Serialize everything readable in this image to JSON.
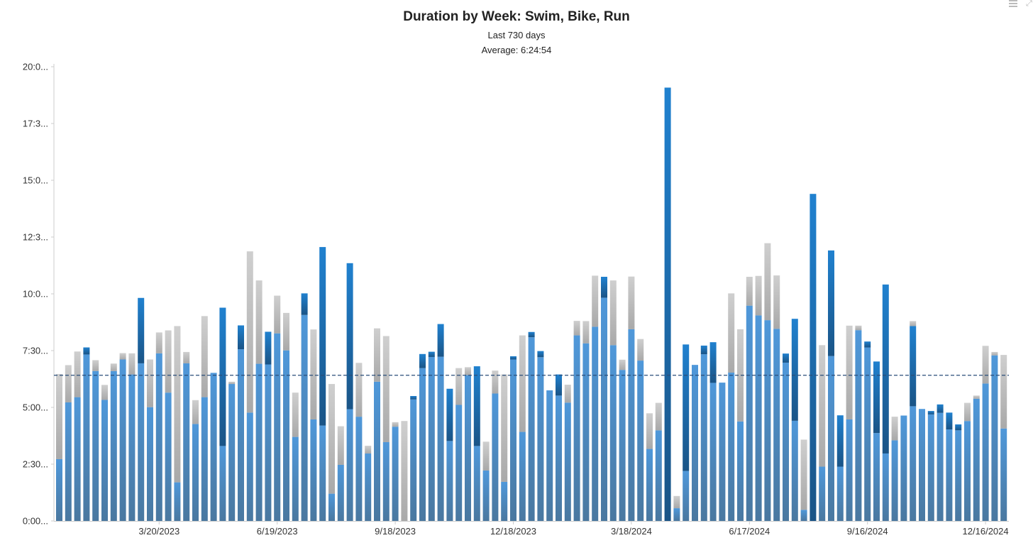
{
  "toolbar": {
    "menu_icon": "hamburger-menu-icon",
    "expand_icon": "expand-icon"
  },
  "chart_data": {
    "type": "bar",
    "stacked": true,
    "title": "Duration by Week: Swim, Bike, Run",
    "subtitle": "Last 730 days",
    "average_label": "Average: 6:24:54",
    "average_hours": 6.415,
    "ylim": [
      0,
      20
    ],
    "y_ticks": [
      {
        "value": 0,
        "label": "0:00..."
      },
      {
        "value": 2.5,
        "label": "2:30..."
      },
      {
        "value": 5,
        "label": "5:00..."
      },
      {
        "value": 7.5,
        "label": "7:30..."
      },
      {
        "value": 10,
        "label": "10:0..."
      },
      {
        "value": 12.5,
        "label": "12:3..."
      },
      {
        "value": 15,
        "label": "15:0..."
      },
      {
        "value": 17.5,
        "label": "17:3..."
      },
      {
        "value": 20,
        "label": "20:0..."
      }
    ],
    "x_ticks": [
      {
        "index": 11,
        "label": "3/20/2023"
      },
      {
        "index": 24,
        "label": "6/19/2023"
      },
      {
        "index": 37,
        "label": "9/18/2023"
      },
      {
        "index": 50,
        "label": "12/18/2023"
      },
      {
        "index": 63,
        "label": "3/18/2024"
      },
      {
        "index": 76,
        "label": "6/17/2024"
      },
      {
        "index": 89,
        "label": "9/16/2024"
      },
      {
        "index": 102,
        "label": "12/16/2024"
      }
    ],
    "series": [
      {
        "key": "light",
        "color": "#4b92d4",
        "values": [
          2.72,
          5.22,
          5.45,
          7.33,
          6.6,
          5.33,
          6.6,
          7.11,
          6.45,
          6.94,
          5.01,
          7.38,
          5.65,
          1.7,
          6.94,
          4.27,
          5.45,
          6.52,
          3.3,
          6.03,
          7.56,
          4.77,
          6.92,
          6.89,
          8.26,
          7.51,
          3.7,
          9.07,
          4.47,
          4.2,
          1.2,
          2.47,
          4.92,
          4.59,
          2.97,
          6.13,
          3.47,
          4.15,
          0.0,
          5.35,
          6.73,
          7.22,
          7.23,
          3.52,
          5.11,
          6.42,
          3.3,
          2.22,
          5.61,
          1.72,
          7.11,
          3.92,
          8.09,
          7.21,
          5.75,
          5.52,
          5.21,
          8.17,
          7.82,
          8.55,
          9.83,
          7.74,
          6.65,
          8.44,
          7.06,
          3.17,
          3.99,
          0.0,
          0.56,
          2.2,
          6.87,
          7.34,
          6.08,
          6.09,
          6.53,
          4.38,
          9.48,
          9.05,
          8.84,
          8.46,
          6.97,
          4.41,
          0.49,
          0.0,
          2.39,
          7.26,
          2.39,
          4.47,
          8.4,
          7.64,
          3.87,
          2.97,
          3.55,
          4.64,
          5.05,
          4.93,
          4.69,
          4.76,
          4.03,
          3.99,
          4.4,
          5.38,
          6.05,
          7.29,
          4.07
        ]
      },
      {
        "key": "dark",
        "color": "#1f67ae",
        "values": [
          0,
          0,
          0,
          0.31,
          0,
          0,
          0,
          0,
          0,
          2.88,
          0,
          0,
          0,
          0,
          0,
          0,
          0,
          0,
          6.09,
          0,
          1.05,
          0,
          0,
          1.44,
          0,
          0,
          0,
          0.95,
          0,
          7.86,
          0,
          0,
          6.43,
          0,
          0,
          0,
          0,
          0,
          0,
          0.15,
          0.62,
          0.23,
          1.44,
          2.3,
          0,
          0,
          3.51,
          0,
          0,
          0,
          0.14,
          0,
          0.23,
          0.27,
          0,
          0.93,
          0,
          0,
          0,
          0,
          0.92,
          0,
          0,
          0,
          0,
          0,
          0,
          19.08,
          0,
          5.57,
          0,
          0.38,
          1.79,
          0,
          0,
          0,
          0,
          0,
          0,
          0,
          0.4,
          4.49,
          0,
          14.4,
          0,
          4.65,
          2.26,
          0,
          0,
          0.26,
          3.15,
          7.44,
          0,
          0,
          3.53,
          0,
          0.15,
          0.37,
          0.74,
          0.26,
          0,
          0,
          0,
          0,
          0
        ]
      },
      {
        "key": "gray",
        "color": "#c3c3c3",
        "values": [
          3.75,
          1.64,
          2.01,
          0,
          0.48,
          0.66,
          0.33,
          0.28,
          0.93,
          0,
          2.1,
          0.92,
          2.74,
          6.88,
          0.5,
          1.05,
          3.57,
          0,
          0,
          0.1,
          0,
          7.1,
          3.67,
          0,
          1.66,
          1.65,
          1.95,
          0,
          3.96,
          0,
          4.83,
          1.7,
          0,
          2.37,
          0.34,
          2.35,
          4.67,
          0.2,
          4.4,
          0,
          0,
          0,
          0,
          0,
          1.62,
          0.35,
          0,
          1.27,
          1.01,
          4.73,
          0,
          4.25,
          0,
          0,
          0,
          0,
          0.79,
          0.64,
          0.98,
          2.25,
          0,
          2.85,
          0.45,
          2.32,
          0.95,
          1.57,
          1.21,
          0,
          0.54,
          0,
          0,
          0,
          0,
          0,
          3.49,
          4.06,
          1.27,
          1.74,
          3.39,
          2.35,
          0,
          0,
          3.09,
          0,
          5.35,
          0,
          0,
          4.13,
          0.2,
          0,
          0,
          0,
          1.04,
          0,
          0.22,
          0,
          0,
          0,
          0,
          0,
          0.8,
          0.14,
          1.66,
          0.15,
          3.24
        ]
      }
    ]
  }
}
